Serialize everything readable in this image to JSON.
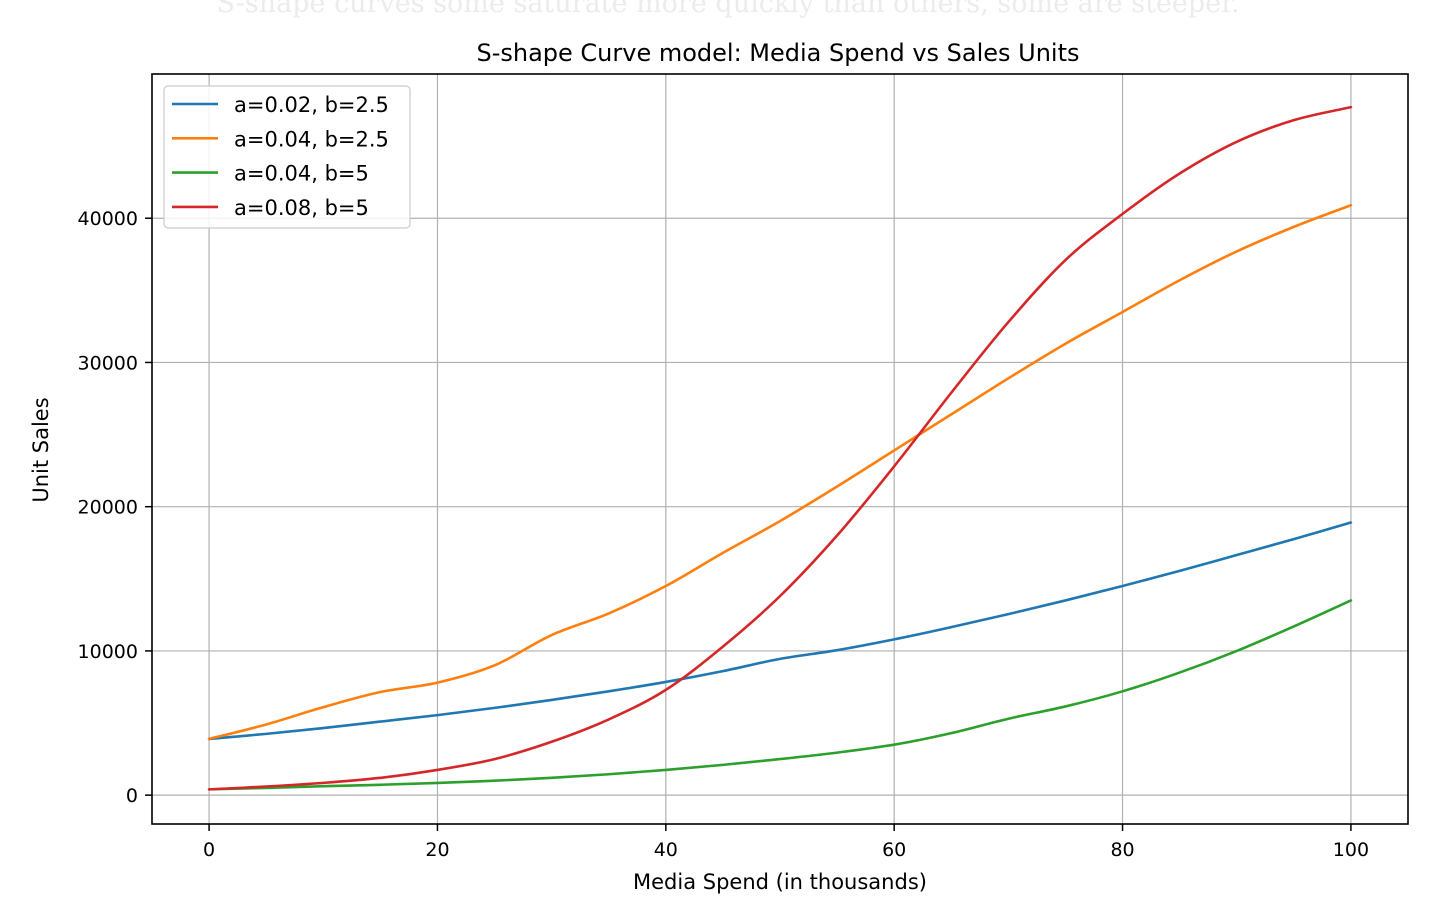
{
  "page": {
    "caption": "S-shape curves some saturate more quickly than others, some are steeper."
  },
  "chart_data": {
    "type": "line",
    "title": "S-shape Curve model: Media Spend vs Sales Units",
    "xlabel": "Media Spend (in thousands)",
    "ylabel": "Unit Sales",
    "xlim": [
      -5,
      105
    ],
    "ylim": [
      -2000,
      50000
    ],
    "xticks": [
      0,
      20,
      40,
      60,
      80,
      100
    ],
    "yticks": [
      0,
      10000,
      20000,
      30000,
      40000
    ],
    "xtick_labels": [
      "0",
      "20",
      "40",
      "60",
      "80",
      "100"
    ],
    "ytick_labels": [
      "0",
      "10000",
      "20000",
      "30000",
      "40000"
    ],
    "grid": true,
    "legend_position": "top-left",
    "x": [
      0,
      5,
      10,
      15,
      20,
      25,
      30,
      35,
      40,
      45,
      50,
      55,
      60,
      65,
      70,
      75,
      80,
      85,
      90,
      95,
      100
    ],
    "series": [
      {
        "name": "a=0.02, b=2.5",
        "color": "#1f77b4",
        "values": [
          3900,
          4250,
          4650,
          5100,
          5550,
          6050,
          6600,
          7200,
          7850,
          8600,
          9450,
          10050,
          10800,
          11650,
          12550,
          13500,
          14500,
          15550,
          16650,
          17750,
          18900
        ]
      },
      {
        "name": "a=0.04, b=2.5",
        "color": "#ff7f0e",
        "values": [
          3900,
          4900,
          6100,
          7150,
          7800,
          9000,
          11100,
          12600,
          14500,
          16800,
          19000,
          21400,
          23900,
          26400,
          28900,
          31300,
          33500,
          35700,
          37700,
          39400,
          40900
        ]
      },
      {
        "name": "a=0.04, b=5",
        "color": "#2ca02c",
        "values": [
          400,
          500,
          620,
          720,
          850,
          1000,
          1200,
          1450,
          1750,
          2100,
          2500,
          2950,
          3500,
          4300,
          5300,
          6150,
          7200,
          8500,
          10000,
          11700,
          13500
        ]
      },
      {
        "name": "a=0.08, b=5",
        "color": "#d62728",
        "values": [
          400,
          600,
          850,
          1200,
          1750,
          2500,
          3700,
          5250,
          7300,
          10300,
          13800,
          18000,
          22800,
          27900,
          32800,
          37100,
          40300,
          43100,
          45300,
          46800,
          47700
        ]
      }
    ]
  }
}
